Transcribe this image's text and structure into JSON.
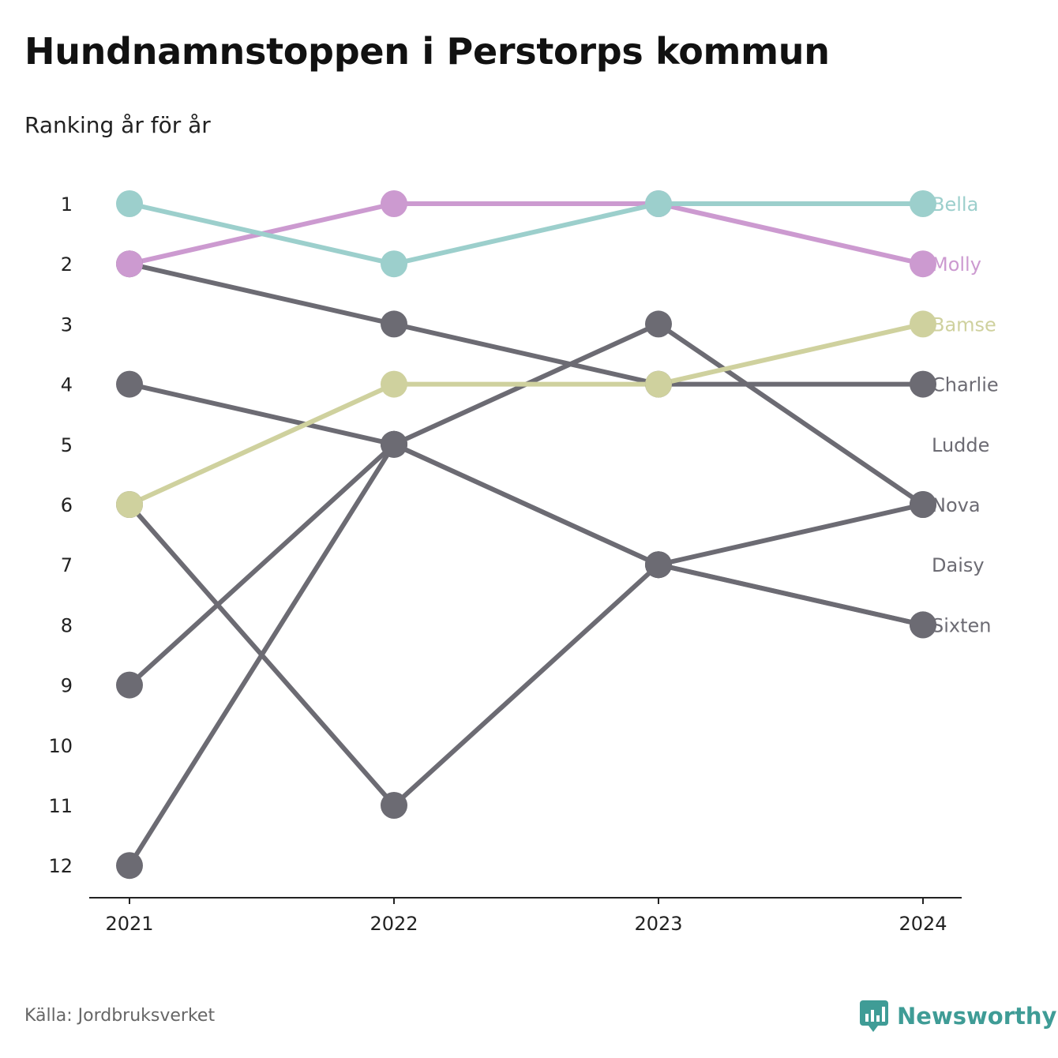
{
  "title": "Hundnamnstoppen i Perstorps kommun",
  "subtitle": "Ranking år för år",
  "source": "Källa: Jordbruksverket",
  "brand": "Newsworthy",
  "brand_icon": "bar-chart-icon",
  "chart_data": {
    "type": "line",
    "x": [
      "2021",
      "2022",
      "2023",
      "2024"
    ],
    "y_ticks": [
      1,
      2,
      3,
      4,
      5,
      6,
      7,
      8,
      9,
      10,
      11,
      12
    ],
    "ylim": [
      1,
      12
    ],
    "y_reversed": true,
    "grid": false,
    "legend": "end-labels-right",
    "series": [
      {
        "name": "Bella",
        "color": "#9ccfcc",
        "values": [
          1,
          2,
          1,
          1
        ]
      },
      {
        "name": "Molly",
        "color": "#cc9ad0",
        "values": [
          2,
          1,
          1,
          2
        ]
      },
      {
        "name": "Bamse",
        "color": "#cfd19e",
        "values": [
          6,
          4,
          4,
          3
        ]
      },
      {
        "name": "Charlie",
        "color": "#6c6b73",
        "values": [
          2,
          3,
          4,
          4
        ]
      },
      {
        "name": "Ludde",
        "color": "#6c6b73",
        "values": [
          9,
          5,
          3,
          6
        ]
      },
      {
        "name": "Nova",
        "color": "#6c6b73",
        "values": [
          12,
          5,
          7,
          6
        ]
      },
      {
        "name": "Daisy",
        "color": "#6c6b73",
        "values": [
          4,
          5,
          7,
          8
        ]
      },
      {
        "name": "Sixten",
        "color": "#6c6b73",
        "values": [
          6,
          11,
          7,
          8
        ]
      }
    ],
    "end_labels": [
      {
        "text": "Bella",
        "rank": 1,
        "color": "#9ccfcc"
      },
      {
        "text": "Molly",
        "rank": 2,
        "color": "#cc9ad0"
      },
      {
        "text": "Bamse",
        "rank": 3,
        "color": "#cfd19e"
      },
      {
        "text": "Charlie",
        "rank": 4,
        "color": "#6c6b73"
      },
      {
        "text": "Ludde",
        "rank": 5,
        "color": "#6c6b73"
      },
      {
        "text": "Nova",
        "rank": 6,
        "color": "#6c6b73"
      },
      {
        "text": "Daisy",
        "rank": 7,
        "color": "#6c6b73"
      },
      {
        "text": "Sixten",
        "rank": 8,
        "color": "#6c6b73"
      }
    ]
  }
}
